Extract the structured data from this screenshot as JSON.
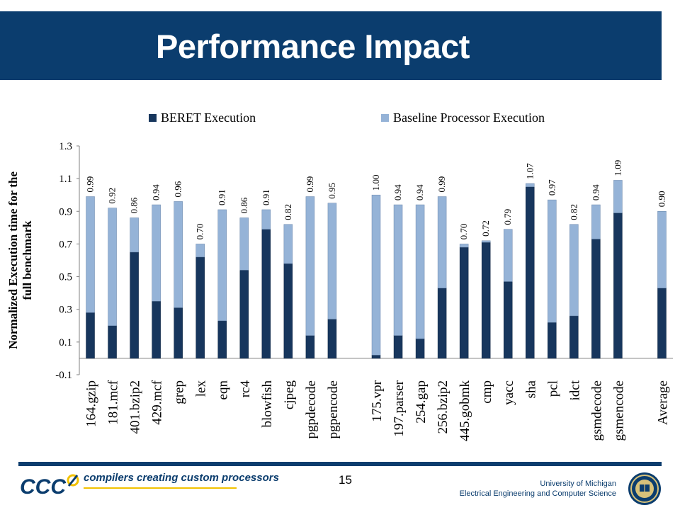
{
  "slide": {
    "title": "Performance Impact",
    "page_number": "15",
    "footer_tagline": "compilers creating custom processors",
    "logo_text": "CCC",
    "university": "University of Michigan",
    "department": "Electrical Engineering and Computer Science"
  },
  "colors": {
    "title_bar": "#0b3d6e",
    "beret": "#17365d",
    "baseline": "#95b3d7",
    "tagline": "#0b3d6e",
    "accent_yellow": "#f2c200"
  },
  "chart_data": {
    "type": "bar",
    "stacked": true,
    "ylabel": "Normalized Execution time for the full benchmark",
    "ylim": [
      -0.1,
      1.3
    ],
    "yticks": [
      -0.1,
      0.1,
      0.3,
      0.5,
      0.7,
      0.9,
      1.1,
      1.3
    ],
    "ytick_labels": [
      "-0.1",
      "0.1",
      "0.3",
      "0.5",
      "0.7",
      "0.9",
      "1.1",
      "1.3"
    ],
    "legend_position": "top",
    "categories": [
      "164.gzip",
      "181.mcf",
      "401.bzip2",
      "429.mcf",
      "grep",
      "lex",
      "eqn",
      "rc4",
      "blowfish",
      "cjpeg",
      "pgpdecode",
      "pgpencode",
      "",
      "175.vpr",
      "197.parser",
      "254.gap",
      "256.bzip2",
      "445.gobmk",
      "cmp",
      "yacc",
      "sha",
      "pcl",
      "idct",
      "gsmdecode",
      "gsmencode",
      "",
      "Average"
    ],
    "series": [
      {
        "name": "BERET Execution",
        "values": [
          0.28,
          0.2,
          0.65,
          0.35,
          0.31,
          0.62,
          0.23,
          0.54,
          0.79,
          0.58,
          0.14,
          0.24,
          null,
          0.02,
          0.14,
          0.12,
          0.43,
          0.68,
          0.71,
          0.47,
          1.05,
          0.22,
          0.26,
          0.73,
          0.89,
          null,
          0.43
        ]
      },
      {
        "name": "Baseline Processor Execution",
        "values": [
          0.71,
          0.72,
          0.21,
          0.59,
          0.65,
          0.08,
          0.68,
          0.32,
          0.12,
          0.24,
          0.85,
          0.71,
          null,
          0.98,
          0.8,
          0.82,
          0.56,
          0.02,
          0.01,
          0.32,
          0.02,
          0.75,
          0.56,
          0.21,
          0.2,
          null,
          0.47
        ]
      }
    ],
    "totals": [
      0.99,
      0.92,
      0.86,
      0.94,
      0.96,
      0.7,
      0.91,
      0.86,
      0.91,
      0.82,
      0.99,
      0.95,
      null,
      1.0,
      0.94,
      0.94,
      0.99,
      0.7,
      0.72,
      0.79,
      1.07,
      0.97,
      0.82,
      0.94,
      1.09,
      null,
      0.9
    ],
    "total_labels": [
      "0.99",
      "0.92",
      "0.86",
      "0.94",
      "0.96",
      "0.70",
      "0.91",
      "0.86",
      "0.91",
      "0.82",
      "0.99",
      "0.95",
      "",
      "1.00",
      "0.94",
      "0.94",
      "0.99",
      "0.70",
      "0.72",
      "0.79",
      "1.07",
      "0.97",
      "0.82",
      "0.94",
      "1.09",
      "",
      "0.90"
    ]
  }
}
